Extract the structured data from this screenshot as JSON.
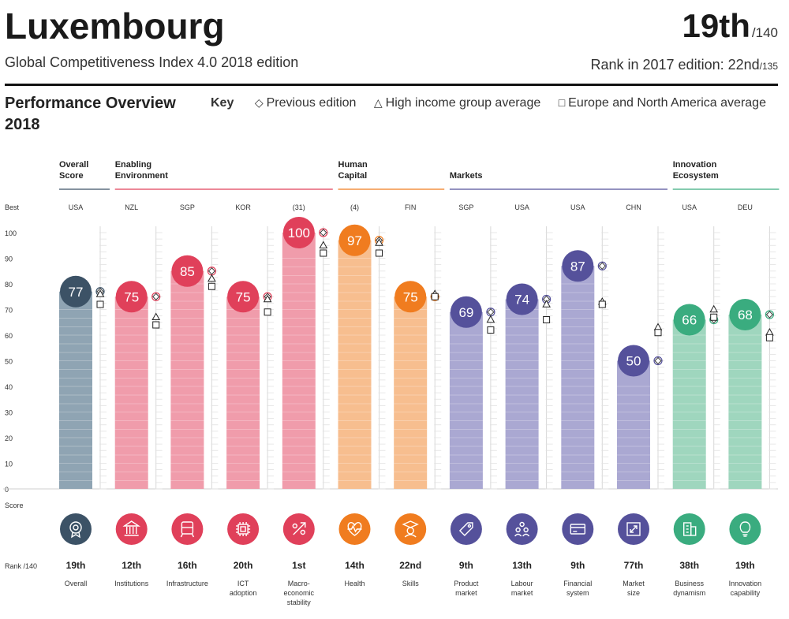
{
  "header": {
    "country": "Luxembourg",
    "edition": "Global Competitiveness Index 4.0 2018 edition",
    "rank": "19th",
    "rank_of": "/140",
    "prev_rank_label": "Rank in 2017 edition: 22nd",
    "prev_rank_of": "/135"
  },
  "overview": {
    "title_line1": "Performance Overview",
    "title_line2": "2018"
  },
  "key": {
    "label": "Key",
    "items": [
      {
        "symbol": "◇",
        "label": "Previous edition"
      },
      {
        "symbol": "△",
        "label": "High income group average"
      },
      {
        "symbol": "□",
        "label": "Europe and North America average"
      }
    ]
  },
  "colors": {
    "overall": "#3c5266",
    "enabling": "#e0405a",
    "human": "#f07c1f",
    "markets": "#55519b",
    "innovation": "#3aac7f"
  },
  "chart_data": {
    "type": "bar",
    "ylim": [
      0,
      100
    ],
    "yticks": [
      "0",
      "10",
      "20",
      "30",
      "40",
      "50",
      "60",
      "70",
      "80",
      "90",
      "100"
    ],
    "row_labels": {
      "best": "Best",
      "score": "Score",
      "rank": "Rank /140"
    },
    "groups": [
      {
        "name": [
          "Overall",
          "Score"
        ],
        "color": "#3c5266",
        "span": [
          0,
          0
        ]
      },
      {
        "name": [
          "Enabling",
          "Environment"
        ],
        "color": "#e0405a",
        "span": [
          1,
          4
        ]
      },
      {
        "name": [
          "Human",
          "Capital"
        ],
        "color": "#f07c1f",
        "span": [
          5,
          6
        ]
      },
      {
        "name": [
          "Markets"
        ],
        "color": "#55519b",
        "span": [
          7,
          10
        ]
      },
      {
        "name": [
          "Innovation",
          "Ecosystem"
        ],
        "color": "#3aac7f",
        "span": [
          11,
          12
        ]
      }
    ],
    "pillars": [
      {
        "label": [
          "Overall"
        ],
        "best": "USA",
        "value": 77,
        "rank": "19th",
        "prev": 77,
        "high_income": 75,
        "europe_na": 72,
        "color": "#3c5266",
        "bar": "#8fa4b3",
        "icon": "medal-icon"
      },
      {
        "label": [
          "Institutions"
        ],
        "best": "NZL",
        "value": 75,
        "rank": "12th",
        "prev": 75,
        "high_income": 66,
        "europe_na": 64,
        "color": "#e0405a",
        "bar": "#f09cab",
        "icon": "institution-icon"
      },
      {
        "label": [
          "Infrastructure"
        ],
        "best": "SGP",
        "value": 85,
        "rank": "16th",
        "prev": 85,
        "high_income": 81,
        "europe_na": 79,
        "color": "#e0405a",
        "bar": "#f09cab",
        "icon": "train-icon"
      },
      {
        "label": [
          "ICT",
          "adoption"
        ],
        "best": "KOR",
        "value": 75,
        "rank": "20th",
        "prev": 75,
        "high_income": 73,
        "europe_na": 69,
        "color": "#e0405a",
        "bar": "#f09cab",
        "icon": "chip-icon"
      },
      {
        "label": [
          "Macro-",
          "economic",
          "stability"
        ],
        "best": "(31)",
        "value": 100,
        "rank": "1st",
        "prev": 100,
        "high_income": 94,
        "europe_na": 92,
        "color": "#e0405a",
        "bar": "#f09cab",
        "icon": "percent-icon"
      },
      {
        "label": [
          "Health"
        ],
        "best": "(4)",
        "value": 97,
        "rank": "14th",
        "prev": 97,
        "high_income": 95,
        "europe_na": 92,
        "color": "#f07c1f",
        "bar": "#f7be8f",
        "icon": "heart-icon"
      },
      {
        "label": [
          "Skills"
        ],
        "best": "FIN",
        "value": 75,
        "rank": "22nd",
        "prev": 75,
        "high_income": 75,
        "europe_na": 75,
        "color": "#f07c1f",
        "bar": "#f7be8f",
        "icon": "graduate-icon"
      },
      {
        "label": [
          "Product",
          "market"
        ],
        "best": "SGP",
        "value": 69,
        "rank": "9th",
        "prev": 69,
        "high_income": 65,
        "europe_na": 62,
        "color": "#55519b",
        "bar": "#aaa8d2",
        "icon": "tag-icon"
      },
      {
        "label": [
          "Labour",
          "market"
        ],
        "best": "USA",
        "value": 74,
        "rank": "13th",
        "prev": 74,
        "high_income": 71,
        "europe_na": 66,
        "color": "#55519b",
        "bar": "#aaa8d2",
        "icon": "people-icon"
      },
      {
        "label": [
          "Financial",
          "system"
        ],
        "best": "USA",
        "value": 87,
        "rank": "9th",
        "prev": 87,
        "high_income": 72,
        "europe_na": 72,
        "color": "#55519b",
        "bar": "#aaa8d2",
        "icon": "card-icon"
      },
      {
        "label": [
          "Market",
          "size"
        ],
        "best": "CHN",
        "value": 50,
        "rank": "77th",
        "prev": 50,
        "high_income": 62,
        "europe_na": 61,
        "color": "#55519b",
        "bar": "#aaa8d2",
        "icon": "expand-icon"
      },
      {
        "label": [
          "Business",
          "dynamism"
        ],
        "best": "USA",
        "value": 66,
        "rank": "38th",
        "prev": 66,
        "high_income": 69,
        "europe_na": 67,
        "color": "#3aac7f",
        "bar": "#9fd6be",
        "icon": "building-icon"
      },
      {
        "label": [
          "Innovation",
          "capability"
        ],
        "best": "DEU",
        "value": 68,
        "rank": "19th",
        "prev": 68,
        "high_income": 60,
        "europe_na": 59,
        "color": "#3aac7f",
        "bar": "#9fd6be",
        "icon": "lightbulb-icon"
      }
    ]
  }
}
